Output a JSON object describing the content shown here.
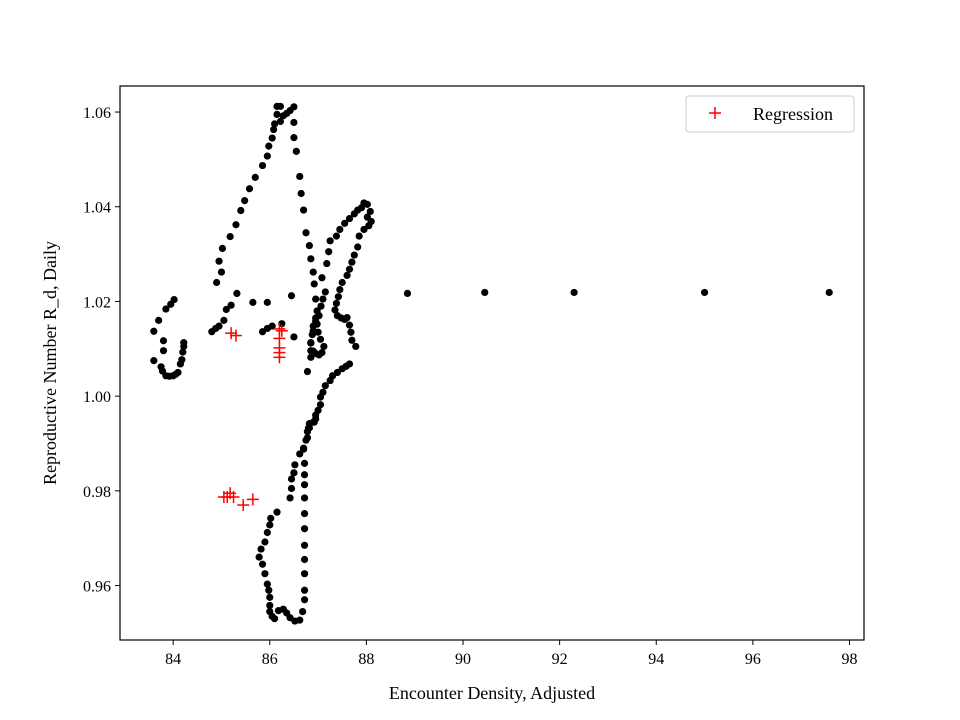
{
  "chart_data": {
    "type": "scatter",
    "title": "",
    "xlabel": "Encounter Density, Adjusted",
    "ylabel": "Reproductive Number R_d, Daily",
    "xlim": [
      82.9,
      98.3
    ],
    "ylim": [
      0.9485,
      1.0655
    ],
    "xticks": [
      "84",
      "86",
      "88",
      "90",
      "92",
      "94",
      "96",
      "98"
    ],
    "yticks": [
      "0.96",
      "0.98",
      "1.00",
      "1.02",
      "1.04",
      "1.06"
    ],
    "grid": false,
    "legend": {
      "position": "upper-right",
      "entries": [
        "Regression"
      ]
    },
    "colors": {
      "data": "#000000",
      "regression": "#ff0000"
    },
    "series": [
      {
        "marker": "dot",
        "color": "#000000",
        "points": [
          [
            83.6,
            1.0137
          ],
          [
            83.7,
            1.016
          ],
          [
            83.8,
            1.0117
          ],
          [
            83.8,
            1.0096
          ],
          [
            83.6,
            1.0075
          ],
          [
            83.75,
            1.0062
          ],
          [
            83.78,
            1.0053
          ],
          [
            83.85,
            1.0043
          ],
          [
            83.92,
            1.0042
          ],
          [
            84.0,
            1.0043
          ],
          [
            84.05,
            1.0046
          ],
          [
            84.1,
            1.005
          ],
          [
            84.15,
            1.0068
          ],
          [
            84.18,
            1.0077
          ],
          [
            84.2,
            1.0093
          ],
          [
            84.22,
            1.0105
          ],
          [
            84.22,
            1.0113
          ],
          [
            83.85,
            1.0184
          ],
          [
            83.95,
            1.0194
          ],
          [
            84.02,
            1.0204
          ],
          [
            84.8,
            1.0136
          ],
          [
            84.88,
            1.0143
          ],
          [
            84.95,
            1.0148
          ],
          [
            85.05,
            1.016
          ],
          [
            85.1,
            1.0183
          ],
          [
            85.2,
            1.0192
          ],
          [
            85.32,
            1.0217
          ],
          [
            84.9,
            1.024
          ],
          [
            85.0,
            1.0262
          ],
          [
            84.95,
            1.0285
          ],
          [
            85.02,
            1.0312
          ],
          [
            85.18,
            1.0337
          ],
          [
            85.3,
            1.0362
          ],
          [
            85.4,
            1.0392
          ],
          [
            85.48,
            1.0413
          ],
          [
            85.58,
            1.0438
          ],
          [
            85.7,
            1.0462
          ],
          [
            85.85,
            1.0487
          ],
          [
            85.95,
            1.0507
          ],
          [
            85.98,
            1.0528
          ],
          [
            86.05,
            1.0545
          ],
          [
            86.08,
            1.0563
          ],
          [
            86.1,
            1.0575
          ],
          [
            86.15,
            1.0595
          ],
          [
            86.15,
            1.0612
          ],
          [
            86.22,
            1.0612
          ],
          [
            86.22,
            1.058
          ],
          [
            86.28,
            1.0592
          ],
          [
            86.35,
            1.0597
          ],
          [
            86.42,
            1.0603
          ],
          [
            86.5,
            1.0611
          ],
          [
            86.5,
            1.0578
          ],
          [
            86.5,
            1.0546
          ],
          [
            86.55,
            1.0517
          ],
          [
            86.62,
            1.0464
          ],
          [
            86.65,
            1.0428
          ],
          [
            86.7,
            1.0393
          ],
          [
            86.75,
            1.0345
          ],
          [
            86.82,
            1.0318
          ],
          [
            86.85,
            1.029
          ],
          [
            86.9,
            1.0262
          ],
          [
            86.92,
            1.0237
          ],
          [
            86.95,
            1.0205
          ],
          [
            86.98,
            1.018
          ],
          [
            86.95,
            1.0165
          ],
          [
            86.9,
            1.0148
          ],
          [
            86.88,
            1.013
          ],
          [
            86.85,
            1.0113
          ],
          [
            86.85,
            1.0096
          ],
          [
            86.95,
            1.009
          ],
          [
            87.02,
            1.0087
          ],
          [
            87.08,
            1.0092
          ],
          [
            87.12,
            1.0105
          ],
          [
            87.05,
            1.012
          ],
          [
            87.0,
            1.0135
          ],
          [
            86.98,
            1.0152
          ],
          [
            87.02,
            1.017
          ],
          [
            87.06,
            1.019
          ],
          [
            87.1,
            1.0205
          ],
          [
            87.15,
            1.022
          ],
          [
            87.08,
            1.025
          ],
          [
            87.18,
            1.028
          ],
          [
            87.22,
            1.0305
          ],
          [
            87.25,
            1.0328
          ],
          [
            87.38,
            1.0338
          ],
          [
            87.45,
            1.0352
          ],
          [
            87.55,
            1.0365
          ],
          [
            87.65,
            1.0375
          ],
          [
            87.75,
            1.0385
          ],
          [
            87.82,
            1.0393
          ],
          [
            87.9,
            1.0398
          ],
          [
            87.95,
            1.0408
          ],
          [
            88.02,
            1.0405
          ],
          [
            88.08,
            1.039
          ],
          [
            88.02,
            1.0378
          ],
          [
            88.1,
            1.0369
          ],
          [
            88.05,
            1.036
          ],
          [
            87.95,
            1.0352
          ],
          [
            87.85,
            1.0338
          ],
          [
            87.82,
            1.0315
          ],
          [
            87.75,
            1.0298
          ],
          [
            87.7,
            1.0283
          ],
          [
            87.65,
            1.0268
          ],
          [
            87.6,
            1.0255
          ],
          [
            87.5,
            1.024
          ],
          [
            87.45,
            1.0225
          ],
          [
            87.42,
            1.021
          ],
          [
            87.38,
            1.0196
          ],
          [
            87.35,
            1.0182
          ],
          [
            87.4,
            1.017
          ],
          [
            87.48,
            1.0165
          ],
          [
            87.55,
            1.0162
          ],
          [
            87.6,
            1.0166
          ],
          [
            87.65,
            1.015
          ],
          [
            87.68,
            1.0135
          ],
          [
            87.7,
            1.0118
          ],
          [
            87.78,
            1.0105
          ],
          [
            87.65,
            1.0068
          ],
          [
            87.58,
            1.0063
          ],
          [
            87.5,
            1.0058
          ],
          [
            87.4,
            1.005
          ],
          [
            87.3,
            1.0043
          ],
          [
            87.25,
            1.0033
          ],
          [
            87.15,
            1.0022
          ],
          [
            87.1,
            1.0008
          ],
          [
            87.05,
            0.9998
          ],
          [
            87.05,
            0.9982
          ],
          [
            87.0,
            0.997
          ],
          [
            86.95,
            0.996
          ],
          [
            86.9,
            0.9945
          ],
          [
            86.82,
            0.9933
          ],
          [
            86.78,
            0.9925
          ],
          [
            86.75,
            0.9907
          ],
          [
            86.7,
            0.9888
          ],
          [
            86.72,
            0.9858
          ],
          [
            86.72,
            0.9834
          ],
          [
            86.72,
            0.9813
          ],
          [
            86.72,
            0.9785
          ],
          [
            86.72,
            0.9752
          ],
          [
            86.72,
            0.972
          ],
          [
            86.72,
            0.9685
          ],
          [
            86.72,
            0.9655
          ],
          [
            86.72,
            0.9625
          ],
          [
            86.72,
            0.959
          ],
          [
            86.72,
            0.957
          ],
          [
            86.68,
            0.9545
          ],
          [
            86.62,
            0.9527
          ],
          [
            86.52,
            0.9525
          ],
          [
            86.42,
            0.9532
          ],
          [
            86.35,
            0.9542
          ],
          [
            86.28,
            0.955
          ],
          [
            86.18,
            0.9547
          ],
          [
            86.1,
            0.953
          ],
          [
            86.05,
            0.9535
          ],
          [
            86.0,
            0.9545
          ],
          [
            86.0,
            0.9558
          ],
          [
            86.0,
            0.9575
          ],
          [
            85.98,
            0.959
          ],
          [
            85.95,
            0.9603
          ],
          [
            85.9,
            0.9625
          ],
          [
            85.85,
            0.9645
          ],
          [
            85.78,
            0.966
          ],
          [
            85.82,
            0.9677
          ],
          [
            85.9,
            0.9692
          ],
          [
            85.95,
            0.9712
          ],
          [
            86.0,
            0.9728
          ],
          [
            86.02,
            0.9742
          ],
          [
            86.15,
            0.9755
          ],
          [
            86.42,
            0.9785
          ],
          [
            86.45,
            0.9805
          ],
          [
            86.45,
            0.9825
          ],
          [
            86.5,
            0.9838
          ],
          [
            86.52,
            0.9855
          ],
          [
            86.62,
            0.9878
          ],
          [
            86.7,
            0.989
          ],
          [
            86.78,
            0.9912
          ],
          [
            86.8,
            0.9932
          ],
          [
            86.82,
            0.9942
          ],
          [
            86.92,
            0.9945
          ],
          [
            86.95,
            0.9952
          ],
          [
            86.78,
            1.0052
          ],
          [
            86.85,
            1.0082
          ],
          [
            86.9,
            1.0095
          ],
          [
            86.85,
            1.0112
          ],
          [
            86.9,
            1.0138
          ],
          [
            86.95,
            1.0158
          ],
          [
            86.5,
            1.0125
          ],
          [
            86.25,
            1.0153
          ],
          [
            86.05,
            1.0148
          ],
          [
            85.95,
            1.0143
          ],
          [
            85.85,
            1.0136
          ],
          [
            85.65,
            1.0198
          ],
          [
            85.95,
            1.0198
          ],
          [
            86.45,
            1.0212
          ],
          [
            88.85,
            1.0217
          ],
          [
            90.45,
            1.0219
          ],
          [
            92.3,
            1.0219
          ],
          [
            95.0,
            1.0219
          ],
          [
            97.58,
            1.0219
          ]
        ]
      },
      {
        "name": "Regression",
        "marker": "plus",
        "color": "#ff0000",
        "points": [
          [
            85.05,
            0.9787
          ],
          [
            85.12,
            0.9787
          ],
          [
            85.18,
            0.9795
          ],
          [
            85.25,
            0.9787
          ],
          [
            85.45,
            0.977
          ],
          [
            85.65,
            0.9782
          ],
          [
            85.2,
            1.0133
          ],
          [
            85.3,
            1.0128
          ],
          [
            86.2,
            1.0142
          ],
          [
            86.25,
            1.0138
          ],
          [
            86.2,
            1.0122
          ],
          [
            86.2,
            1.0102
          ],
          [
            86.2,
            1.0092
          ],
          [
            86.2,
            1.0082
          ]
        ]
      }
    ]
  }
}
